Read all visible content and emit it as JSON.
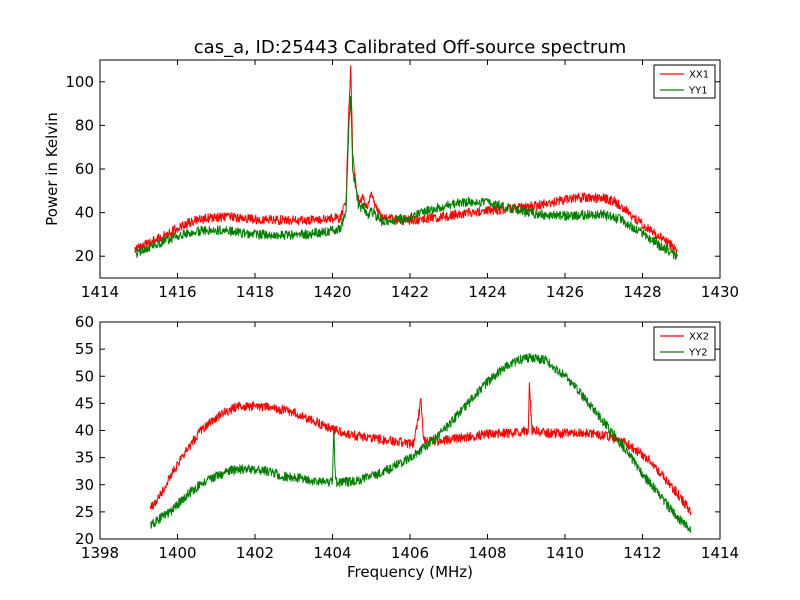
{
  "chart_data": [
    {
      "type": "line",
      "title": "cas_a, ID:25443 Calibrated Off-source spectrum",
      "xlabel": "",
      "ylabel": "Power in Kelvin",
      "xlim": [
        1414,
        1430
      ],
      "ylim": [
        10,
        110
      ],
      "xticks": [
        1414,
        1416,
        1418,
        1420,
        1422,
        1424,
        1426,
        1428,
        1430
      ],
      "yticks": [
        20,
        40,
        60,
        80,
        100
      ],
      "grid": false,
      "legend_position": "top-right",
      "series": [
        {
          "name": "XX1",
          "color": "#ff0000",
          "points": [
            [
              1414.9,
              23
            ],
            [
              1415.3,
              26
            ],
            [
              1415.8,
              31
            ],
            [
              1416.3,
              35.5
            ],
            [
              1416.8,
              37.5
            ],
            [
              1417.3,
              38
            ],
            [
              1418,
              37
            ],
            [
              1418.7,
              36.5
            ],
            [
              1419.3,
              36.5
            ],
            [
              1419.9,
              37
            ],
            [
              1420.2,
              37.5
            ],
            [
              1420.35,
              45
            ],
            [
              1420.42,
              88
            ],
            [
              1420.47,
              106
            ],
            [
              1420.52,
              68
            ],
            [
              1420.6,
              52
            ],
            [
              1420.7,
              44
            ],
            [
              1420.8,
              47
            ],
            [
              1420.9,
              42
            ],
            [
              1421.0,
              49
            ],
            [
              1421.1,
              43
            ],
            [
              1421.25,
              38
            ],
            [
              1421.5,
              37
            ],
            [
              1422,
              36.5
            ],
            [
              1422.5,
              37.5
            ],
            [
              1423,
              38.5
            ],
            [
              1423.5,
              40
            ],
            [
              1424,
              41
            ],
            [
              1424.5,
              41.5
            ],
            [
              1425,
              42.5
            ],
            [
              1425.5,
              44
            ],
            [
              1426,
              46
            ],
            [
              1426.5,
              47
            ],
            [
              1427,
              46.5
            ],
            [
              1427.3,
              45
            ],
            [
              1427.7,
              39
            ],
            [
              1428.1,
              33
            ],
            [
              1428.5,
              28
            ],
            [
              1428.9,
              23
            ]
          ]
        },
        {
          "name": "YY1",
          "color": "#008000",
          "points": [
            [
              1414.9,
              21
            ],
            [
              1415.3,
              24
            ],
            [
              1415.8,
              28
            ],
            [
              1416.3,
              31
            ],
            [
              1416.8,
              32
            ],
            [
              1417.3,
              31.5
            ],
            [
              1418,
              30
            ],
            [
              1418.7,
              29.5
            ],
            [
              1419.3,
              30
            ],
            [
              1419.9,
              31.5
            ],
            [
              1420.2,
              32.5
            ],
            [
              1420.35,
              40
            ],
            [
              1420.42,
              80
            ],
            [
              1420.47,
              94
            ],
            [
              1420.52,
              60
            ],
            [
              1420.6,
              50
            ],
            [
              1420.7,
              41
            ],
            [
              1420.8,
              43
            ],
            [
              1420.9,
              39
            ],
            [
              1421.0,
              41
            ],
            [
              1421.1,
              39
            ],
            [
              1421.25,
              36
            ],
            [
              1421.5,
              36
            ],
            [
              1422,
              38
            ],
            [
              1422.5,
              41
            ],
            [
              1423,
              43.5
            ],
            [
              1423.5,
              45
            ],
            [
              1424,
              44.5
            ],
            [
              1424.5,
              42.5
            ],
            [
              1425,
              40
            ],
            [
              1425.5,
              39
            ],
            [
              1426,
              38.5
            ],
            [
              1426.5,
              39
            ],
            [
              1427,
              39
            ],
            [
              1427.4,
              37
            ],
            [
              1427.8,
              33
            ],
            [
              1428.2,
              28
            ],
            [
              1428.5,
              24
            ],
            [
              1428.9,
              20
            ]
          ]
        }
      ]
    },
    {
      "type": "line",
      "title": "",
      "xlabel": "Frequency (MHz)",
      "ylabel": "",
      "xlim": [
        1398,
        1414
      ],
      "ylim": [
        20,
        60
      ],
      "xticks": [
        1398,
        1400,
        1402,
        1404,
        1406,
        1408,
        1410,
        1412,
        1414
      ],
      "yticks": [
        20,
        25,
        30,
        35,
        40,
        45,
        50,
        55,
        60
      ],
      "grid": false,
      "legend_position": "top-right",
      "series": [
        {
          "name": "XX2",
          "color": "#ff0000",
          "points": [
            [
              1399.3,
              25.5
            ],
            [
              1399.7,
              30
            ],
            [
              1400.1,
              35
            ],
            [
              1400.6,
              40
            ],
            [
              1401.1,
              43
            ],
            [
              1401.6,
              44.5
            ],
            [
              1402.1,
              44.5
            ],
            [
              1402.6,
              44
            ],
            [
              1403.1,
              43
            ],
            [
              1403.6,
              41.5
            ],
            [
              1404.1,
              40
            ],
            [
              1404.6,
              39
            ],
            [
              1405.1,
              38.5
            ],
            [
              1405.6,
              38
            ],
            [
              1406.1,
              37.5
            ],
            [
              1406.28,
              45.5
            ],
            [
              1406.35,
              38
            ],
            [
              1406.7,
              38
            ],
            [
              1407.2,
              38.5
            ],
            [
              1407.7,
              39
            ],
            [
              1408.2,
              39.5
            ],
            [
              1408.7,
              39.5
            ],
            [
              1409.05,
              40
            ],
            [
              1409.08,
              48
            ],
            [
              1409.15,
              40
            ],
            [
              1409.6,
              39.5
            ],
            [
              1410.1,
              39.5
            ],
            [
              1410.6,
              39.5
            ],
            [
              1411.1,
              39
            ],
            [
              1411.6,
              37.5
            ],
            [
              1412.1,
              35
            ],
            [
              1412.6,
              31
            ],
            [
              1413.0,
              27.5
            ],
            [
              1413.25,
              25
            ]
          ]
        },
        {
          "name": "YY2",
          "color": "#008000",
          "points": [
            [
              1399.3,
              22.5
            ],
            [
              1399.8,
              25
            ],
            [
              1400.3,
              28.5
            ],
            [
              1400.8,
              31
            ],
            [
              1401.3,
              32.5
            ],
            [
              1401.8,
              33
            ],
            [
              1402.3,
              32.5
            ],
            [
              1402.8,
              31.5
            ],
            [
              1403.3,
              31
            ],
            [
              1403.8,
              30.5
            ],
            [
              1404.0,
              30.5
            ],
            [
              1404.03,
              40.5
            ],
            [
              1404.08,
              30.5
            ],
            [
              1404.5,
              30.5
            ],
            [
              1405.0,
              31.5
            ],
            [
              1405.5,
              33
            ],
            [
              1406.0,
              35
            ],
            [
              1406.5,
              37.5
            ],
            [
              1407.0,
              41
            ],
            [
              1407.5,
              45
            ],
            [
              1408.0,
              49
            ],
            [
              1408.5,
              52
            ],
            [
              1409.0,
              53.5
            ],
            [
              1409.5,
              53
            ],
            [
              1410.0,
              50
            ],
            [
              1410.5,
              46
            ],
            [
              1411.0,
              41.5
            ],
            [
              1411.5,
              37
            ],
            [
              1412.0,
              32
            ],
            [
              1412.5,
              27.5
            ],
            [
              1412.9,
              24
            ],
            [
              1413.25,
              21.5
            ]
          ]
        }
      ]
    }
  ]
}
